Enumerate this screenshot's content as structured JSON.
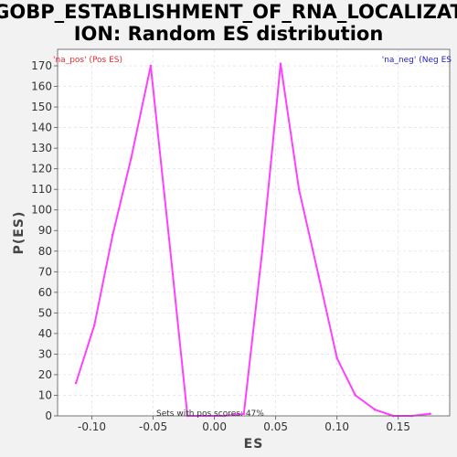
{
  "chart_data": {
    "type": "line",
    "title_line1": "GOBP_ESTABLISHMENT_OF_RNA_LOCALIZAT",
    "title_line2": "ION: Random ES distribution",
    "xlabel": "ES",
    "ylabel": "P(ES)",
    "xlim": [
      -0.128,
      0.192
    ],
    "ylim": [
      0,
      178
    ],
    "xticks": [
      -0.1,
      -0.05,
      0.0,
      0.05,
      0.1,
      0.15
    ],
    "xtick_labels": [
      "-0.10",
      "-0.05",
      "0.00",
      "0.05",
      "0.10",
      "0.15"
    ],
    "yticks": [
      0,
      10,
      20,
      30,
      40,
      50,
      60,
      70,
      80,
      90,
      100,
      110,
      120,
      130,
      140,
      150,
      160,
      170
    ],
    "grid": true,
    "legend_left": "'na_pos' (Pos ES)",
    "legend_right": "'na_neg' (Neg ES",
    "legend_left_color": "#e8292f",
    "legend_right_color": "#2323c8",
    "annotation": "Sets with pos scores: 47%",
    "series": [
      {
        "color": "#ff40ff",
        "x": [
          -0.113,
          -0.098,
          -0.083,
          -0.068,
          -0.052,
          -0.037,
          -0.022,
          -0.007,
          0.008,
          0.024,
          0.039,
          0.054,
          0.069,
          0.085,
          0.1,
          0.115,
          0.131,
          0.146,
          0.161,
          0.176
        ],
        "y": [
          16,
          44,
          88,
          125,
          170,
          86,
          0,
          0,
          0,
          1,
          80,
          171,
          110,
          68,
          28,
          10,
          3,
          0,
          0,
          1
        ]
      }
    ]
  }
}
